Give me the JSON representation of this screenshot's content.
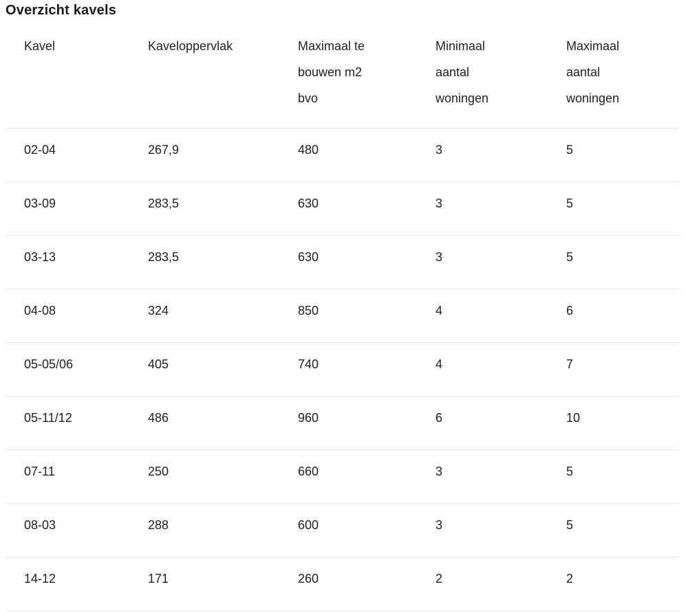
{
  "page": {
    "title": "Overzicht kavels"
  },
  "table": {
    "columns": [
      "Kavel",
      "Kaveloppervlak",
      "Maximaal te bouwen m2 bvo",
      "Minimaal aantal woningen",
      "Maximaal aantal woningen"
    ],
    "rows": [
      [
        "02-04",
        "267,9",
        "480",
        "3",
        "5"
      ],
      [
        "03-09",
        "283,5",
        "630",
        "3",
        "5"
      ],
      [
        "03-13",
        "283,5",
        "630",
        "3",
        "5"
      ],
      [
        "04-08",
        "324",
        "850",
        "4",
        "6"
      ],
      [
        "05-05/06",
        "405",
        "740",
        "4",
        "7"
      ],
      [
        "05-11/12",
        "486",
        "960",
        "6",
        "10"
      ],
      [
        "07-11",
        "250",
        "660",
        "3",
        "5"
      ],
      [
        "08-03",
        "288",
        "600",
        "3",
        "5"
      ],
      [
        "14-12",
        "171",
        "260",
        "2",
        "2"
      ]
    ]
  },
  "chart_data": {
    "type": "table",
    "title": "Overzicht kavels",
    "columns": [
      "Kavel",
      "Kaveloppervlak",
      "Maximaal te bouwen m2 bvo",
      "Minimaal aantal woningen",
      "Maximaal aantal woningen"
    ],
    "rows": [
      [
        "02-04",
        "267,9",
        "480",
        "3",
        "5"
      ],
      [
        "03-09",
        "283,5",
        "630",
        "3",
        "5"
      ],
      [
        "03-13",
        "283,5",
        "630",
        "3",
        "5"
      ],
      [
        "04-08",
        "324",
        "850",
        "4",
        "6"
      ],
      [
        "05-05/06",
        "405",
        "740",
        "4",
        "7"
      ],
      [
        "05-11/12",
        "486",
        "960",
        "6",
        "10"
      ],
      [
        "07-11",
        "250",
        "660",
        "3",
        "5"
      ],
      [
        "08-03",
        "288",
        "600",
        "3",
        "5"
      ],
      [
        "14-12",
        "171",
        "260",
        "2",
        "2"
      ]
    ]
  },
  "colors": {
    "text": "#222222",
    "title_text": "#1a1a1a",
    "divider": "#e6e6e6",
    "background": "#ffffff"
  }
}
